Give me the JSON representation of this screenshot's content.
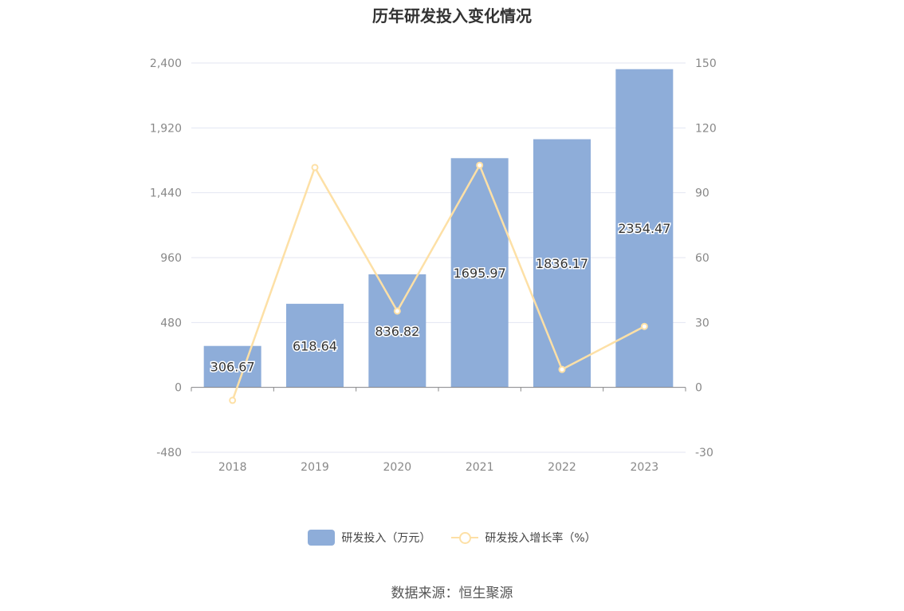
{
  "title": "历年研发投入变化情况",
  "source": "数据来源：恒生聚源",
  "chart_data": {
    "type": "bar",
    "categories": [
      "2018",
      "2019",
      "2020",
      "2021",
      "2022",
      "2023"
    ],
    "series": [
      {
        "name": "研发投入（万元）",
        "type": "bar",
        "axis": "left",
        "color": "#8eadd9",
        "values": [
          306.67,
          618.64,
          836.82,
          1695.97,
          1836.17,
          2354.47
        ],
        "labels": [
          "306.67",
          "618.64",
          "836.82",
          "1695.97",
          "1836.17",
          "2354.47"
        ]
      },
      {
        "name": "研发投入增长率（%）",
        "type": "line",
        "axis": "right",
        "color": "#fde0a6",
        "values": [
          -6,
          101.7,
          35.3,
          102.7,
          8.3,
          28.2
        ]
      }
    ],
    "y_left": {
      "min": -480,
      "max": 2400,
      "ticks": [
        -480,
        0,
        480,
        960,
        1440,
        1920,
        2400
      ],
      "tick_labels": [
        "-480",
        "0",
        "480",
        "960",
        "1,440",
        "1,920",
        "2,400"
      ]
    },
    "y_right": {
      "min": -30,
      "max": 150,
      "ticks": [
        -30,
        0,
        30,
        60,
        90,
        120,
        150
      ],
      "tick_labels": [
        "-30",
        "0",
        "30",
        "60",
        "90",
        "120",
        "150"
      ]
    },
    "grid": true,
    "legend_position": "bottom"
  }
}
